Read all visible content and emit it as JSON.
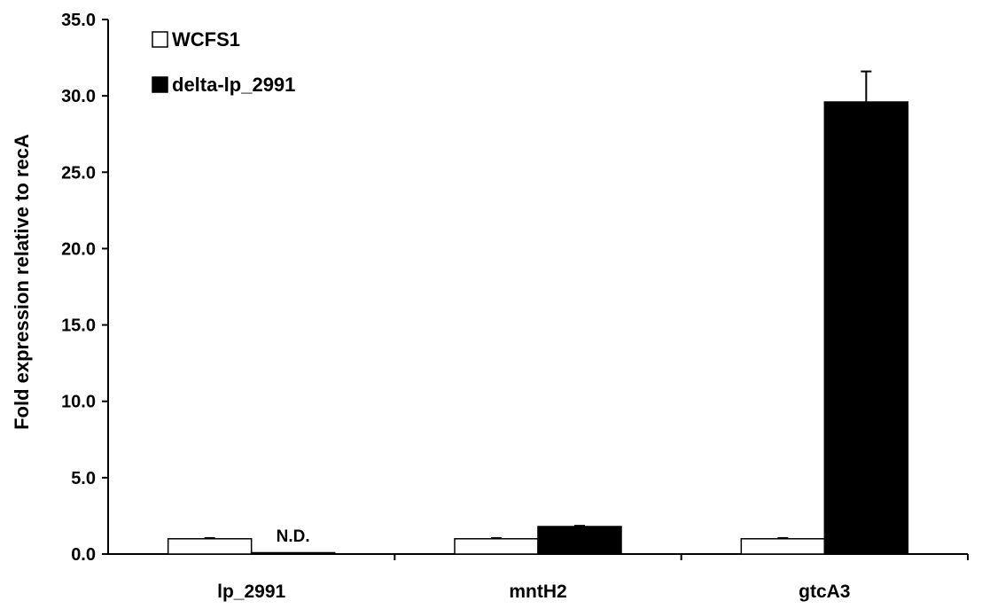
{
  "chart_data": {
    "type": "bar",
    "title": "",
    "xlabel": "",
    "ylabel": "Fold expression relative to recA",
    "ylim": [
      0,
      35
    ],
    "yticks": [
      "0.0",
      "5.0",
      "10.0",
      "15.0",
      "20.0",
      "25.0",
      "30.0",
      "35.0"
    ],
    "categories": [
      "lp_2991",
      "mntH2",
      "gtcA3"
    ],
    "series": [
      {
        "name": "WCFS1",
        "values": [
          1.0,
          1.0,
          1.0
        ],
        "errors": [
          0.05,
          0.05,
          0.05
        ],
        "color": "#ffffff"
      },
      {
        "name": "delta-lp_2991",
        "values": [
          0.0,
          1.8,
          29.6
        ],
        "errors": [
          0.0,
          0.05,
          2.0
        ],
        "color": "#000000"
      }
    ],
    "annotations": [
      {
        "category": "lp_2991",
        "series": "delta-lp_2991",
        "text": "N.D."
      }
    ],
    "legend_position": "top-left",
    "grid": false
  }
}
